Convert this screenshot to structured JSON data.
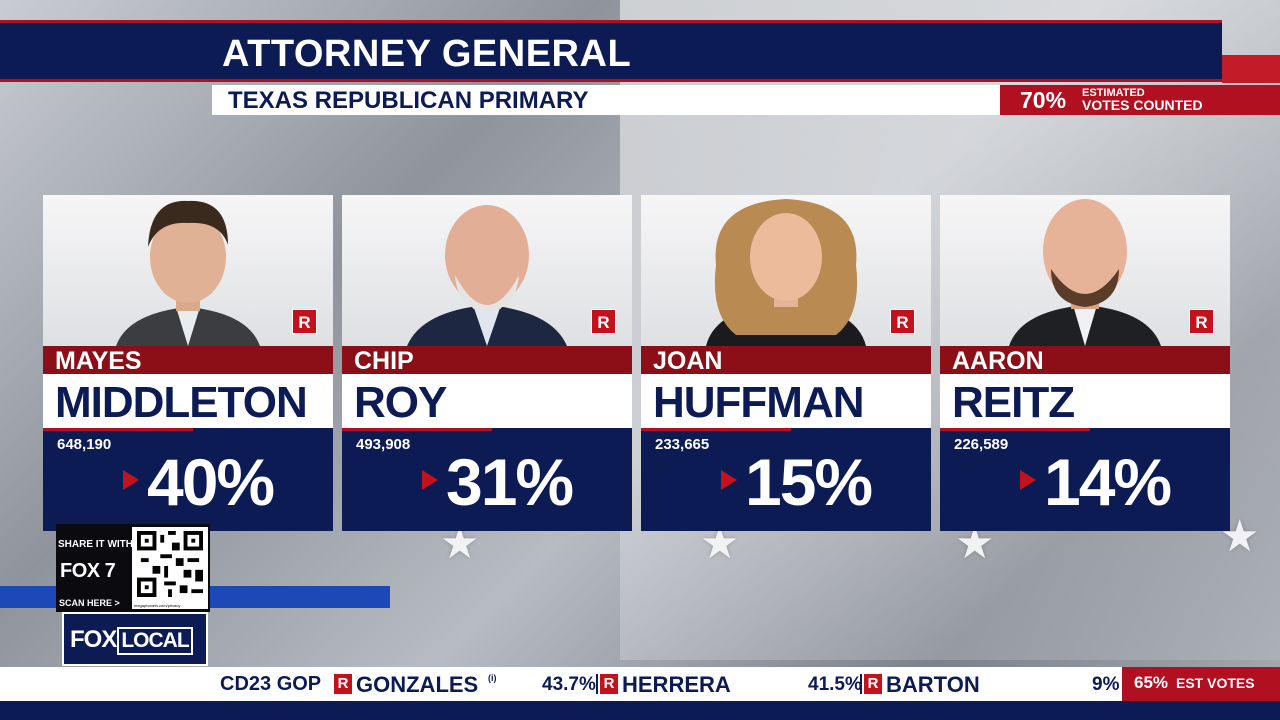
{
  "header": {
    "title": "ATTORNEY GENERAL",
    "subtitle": "TEXAS REPUBLICAN PRIMARY",
    "votes_counted_pct": "70%",
    "votes_counted_label_line1": "ESTIMATED",
    "votes_counted_label_line2": "VOTES COUNTED"
  },
  "candidates": [
    {
      "first": "MAYES",
      "last": "MIDDLETON",
      "party": "R",
      "votes": "648,190",
      "pct": "40%"
    },
    {
      "first": "CHIP",
      "last": "ROY",
      "party": "R",
      "votes": "493,908",
      "pct": "31%"
    },
    {
      "first": "JOAN",
      "last": "HUFFMAN",
      "party": "R",
      "votes": "233,665",
      "pct": "15%"
    },
    {
      "first": "AARON",
      "last": "REITZ",
      "party": "R",
      "votes": "226,589",
      "pct": "14%"
    }
  ],
  "share": {
    "line1": "SHARE IT WITH",
    "station": "FOX 7",
    "scan": "SCAN HERE >",
    "qr_url": "megaphonetv.com/privacy"
  },
  "logo": {
    "fox": "FOX",
    "local": "LOCAL"
  },
  "ticker": {
    "race": "CD23 GOP",
    "party_mark": "R",
    "c1_name": "GONZALES",
    "c1_marker": "(i)",
    "c1_pct": "43.7%",
    "c2_name": "HERRERA",
    "c2_pct": "41.5%",
    "c3_name": "BARTON",
    "c3_pct": "9%",
    "est_pct": "65%",
    "est_label": "EST VOTES"
  },
  "colors": {
    "navy": "#0d1b55",
    "red": "#b01020",
    "dark_red": "#8c0f17",
    "white": "#ffffff"
  }
}
